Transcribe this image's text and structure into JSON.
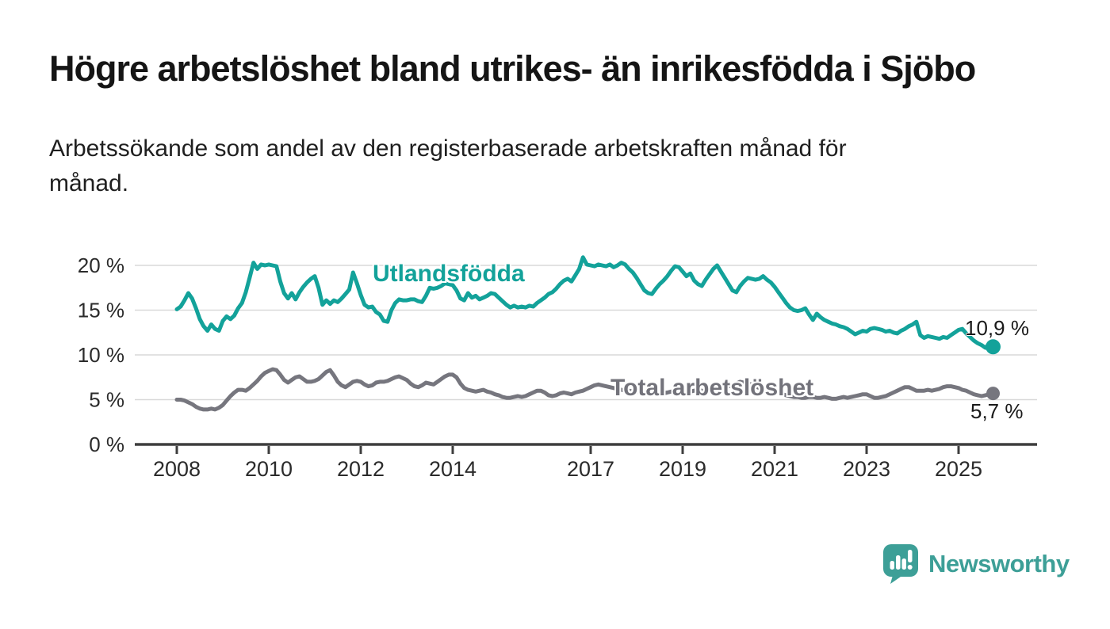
{
  "header": {
    "title": "Högre arbetslöshet bland utrikes- än inrikesfödda i Sjöbo",
    "subtitle_line1": "Arbetssökande som andel av den registerbaserade arbetskraften månad för",
    "subtitle_line2": "månad."
  },
  "footer": {
    "brand": "Newsworthy"
  },
  "colors": {
    "series_foreign": "#13a29a",
    "series_total": "#76767e",
    "grid": "#d9d9d9",
    "axis": "#3e3e3e",
    "tick_text": "#2b2b2b",
    "logo": "#3d9f97"
  },
  "chart_data": {
    "type": "line",
    "title": "Högre arbetslöshet bland utrikes- än inrikesfödda i Sjöbo",
    "subtitle": "Arbetssökande som andel av den registerbaserade arbetskraften månad för månad.",
    "x_unit": "month",
    "x_start": "2008-01",
    "x_end": "2025-10",
    "frequency": "monthly",
    "xlim": [
      2007.05,
      2026.75
    ],
    "ylim": [
      0,
      22
    ],
    "grid": true,
    "legend_position": "inline",
    "x_ticks": [
      2008,
      2010,
      2012,
      2014,
      2017,
      2019,
      2021,
      2023,
      2025
    ],
    "x_tick_labels": [
      "2008",
      "2010",
      "2012",
      "2014",
      "2017",
      "2019",
      "2021",
      "2023",
      "2025"
    ],
    "y_ticks": [
      0,
      5,
      10,
      15,
      20
    ],
    "y_tick_labels": [
      "0 %",
      "5 %",
      "10 %",
      "15 %",
      "20 %"
    ],
    "series": [
      {
        "name": "Utlandsfödda",
        "color": "#13a29a",
        "end_label": "10,9 %",
        "end_value": 10.9,
        "values": [
          15.1,
          15.4,
          16.1,
          16.9,
          16.3,
          15.2,
          14.0,
          13.2,
          12.7,
          13.4,
          12.9,
          12.7,
          13.8,
          14.3,
          14.0,
          14.4,
          15.2,
          15.8,
          17.0,
          18.6,
          20.3,
          19.6,
          20.1,
          20.0,
          20.1,
          20.0,
          19.9,
          18.2,
          16.9,
          16.3,
          16.9,
          16.2,
          17.0,
          17.6,
          18.1,
          18.5,
          18.8,
          17.5,
          15.6,
          16.1,
          15.7,
          16.1,
          15.9,
          16.3,
          16.8,
          17.3,
          19.2,
          18.0,
          16.7,
          15.6,
          15.3,
          15.4,
          14.8,
          14.5,
          13.8,
          13.7,
          15.0,
          15.8,
          16.2,
          16.1,
          16.1,
          16.2,
          16.2,
          16.0,
          15.9,
          16.6,
          17.5,
          17.4,
          17.5,
          17.7,
          18.0,
          17.9,
          17.8,
          17.2,
          16.3,
          16.1,
          16.9,
          16.4,
          16.6,
          16.2,
          16.4,
          16.6,
          16.9,
          16.8,
          16.4,
          16.0,
          15.6,
          15.3,
          15.5,
          15.3,
          15.4,
          15.3,
          15.5,
          15.4,
          15.8,
          16.1,
          16.4,
          16.8,
          17.0,
          17.4,
          17.9,
          18.3,
          18.5,
          18.2,
          18.9,
          19.6,
          20.9,
          20.1,
          20.0,
          19.9,
          20.1,
          20.0,
          19.9,
          20.1,
          19.8,
          20.0,
          20.3,
          20.1,
          19.6,
          19.2,
          18.6,
          17.9,
          17.2,
          16.9,
          16.8,
          17.4,
          17.9,
          18.3,
          18.8,
          19.4,
          19.9,
          19.8,
          19.3,
          18.8,
          19.1,
          18.3,
          17.9,
          17.7,
          18.4,
          19.0,
          19.6,
          20.0,
          19.3,
          18.6,
          17.9,
          17.2,
          17.0,
          17.7,
          18.2,
          18.6,
          18.5,
          18.4,
          18.5,
          18.8,
          18.4,
          18.1,
          17.6,
          17.0,
          16.4,
          15.8,
          15.3,
          15.0,
          14.9,
          15.0,
          15.2,
          14.5,
          13.9,
          14.6,
          14.2,
          13.9,
          13.7,
          13.5,
          13.4,
          13.2,
          13.1,
          12.9,
          12.6,
          12.3,
          12.5,
          12.7,
          12.6,
          12.9,
          13.0,
          12.9,
          12.8,
          12.6,
          12.7,
          12.5,
          12.4,
          12.7,
          12.9,
          13.2,
          13.4,
          13.7,
          12.2,
          11.9,
          12.1,
          12.0,
          11.9,
          11.8,
          12.0,
          11.9,
          12.2,
          12.5,
          12.8,
          12.9,
          12.4,
          12.0,
          11.6,
          11.3,
          11.1,
          10.8,
          11.2,
          10.9
        ]
      },
      {
        "name": "Total arbetslöshet",
        "color": "#76767e",
        "end_label": "5,7 %",
        "end_value": 5.7,
        "values": [
          5.0,
          5.0,
          4.9,
          4.7,
          4.5,
          4.2,
          4.0,
          3.9,
          3.9,
          4.0,
          3.9,
          4.1,
          4.4,
          4.9,
          5.4,
          5.8,
          6.1,
          6.1,
          6.0,
          6.3,
          6.7,
          7.1,
          7.6,
          8.0,
          8.2,
          8.4,
          8.3,
          7.8,
          7.2,
          6.9,
          7.2,
          7.5,
          7.6,
          7.3,
          7.0,
          7.0,
          7.1,
          7.3,
          7.7,
          8.1,
          8.3,
          7.7,
          7.0,
          6.6,
          6.4,
          6.7,
          7.0,
          7.1,
          7.0,
          6.7,
          6.5,
          6.6,
          6.9,
          7.0,
          7.0,
          7.1,
          7.3,
          7.5,
          7.6,
          7.4,
          7.2,
          6.8,
          6.5,
          6.4,
          6.6,
          6.9,
          6.8,
          6.7,
          7.0,
          7.3,
          7.6,
          7.8,
          7.8,
          7.5,
          6.8,
          6.3,
          6.1,
          6.0,
          5.9,
          6.0,
          6.1,
          5.9,
          5.8,
          5.6,
          5.5,
          5.3,
          5.2,
          5.2,
          5.3,
          5.4,
          5.3,
          5.4,
          5.6,
          5.8,
          6.0,
          6.0,
          5.8,
          5.5,
          5.4,
          5.5,
          5.7,
          5.8,
          5.7,
          5.6,
          5.8,
          5.9,
          6.0,
          6.2,
          6.4,
          6.6,
          6.7,
          6.6,
          6.5,
          6.4,
          6.3,
          6.2,
          6.1,
          6.0,
          6.0,
          5.9,
          5.9,
          5.8,
          5.7,
          5.7,
          5.8,
          5.9,
          5.8,
          5.7,
          5.8,
          5.9,
          6.0,
          6.0,
          5.9,
          5.8,
          5.9,
          6.0,
          6.1,
          6.0,
          5.9,
          5.9,
          6.0,
          6.1,
          6.2,
          6.4,
          6.5,
          6.6,
          6.8,
          7.0,
          6.9,
          6.8,
          6.7,
          6.5,
          6.3,
          6.1,
          6.0,
          5.9,
          5.8,
          5.7,
          5.6,
          5.5,
          5.4,
          5.3,
          5.3,
          5.2,
          5.2,
          5.3,
          5.3,
          5.2,
          5.2,
          5.3,
          5.2,
          5.1,
          5.1,
          5.2,
          5.3,
          5.2,
          5.3,
          5.4,
          5.5,
          5.6,
          5.6,
          5.4,
          5.2,
          5.2,
          5.3,
          5.4,
          5.6,
          5.8,
          6.0,
          6.2,
          6.4,
          6.4,
          6.2,
          6.0,
          6.0,
          6.0,
          6.1,
          6.0,
          6.1,
          6.2,
          6.4,
          6.5,
          6.5,
          6.4,
          6.3,
          6.1,
          6.0,
          5.8,
          5.6,
          5.5,
          5.4,
          5.5,
          5.6,
          5.7
        ]
      }
    ]
  }
}
